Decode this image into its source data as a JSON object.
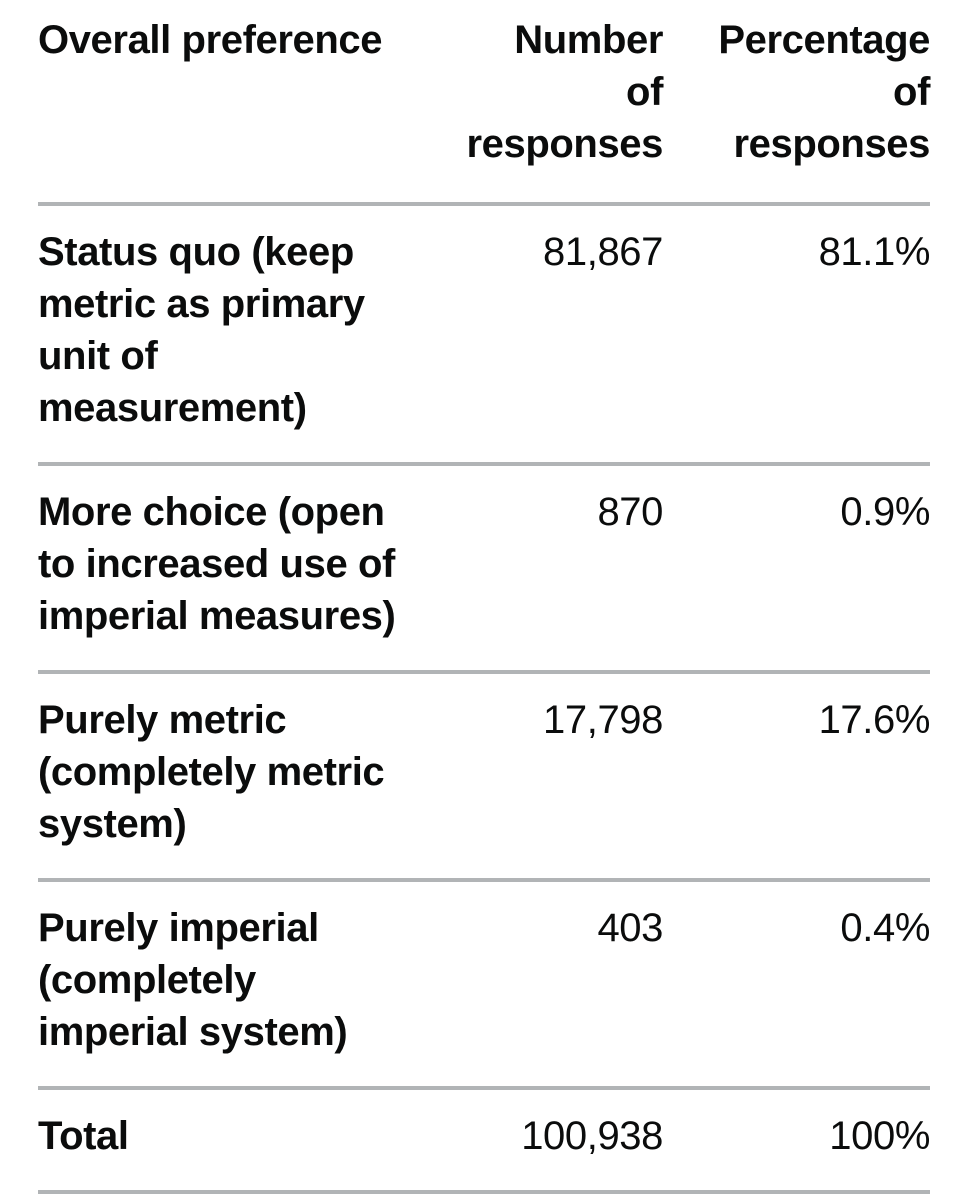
{
  "page": {
    "background": "#ffffff",
    "text_color": "#0b0c0c",
    "rule_color": "#b1b4b6"
  },
  "table": {
    "headers": [
      {
        "label": "Overall preference"
      },
      {
        "label": "Number\nof\nresponses"
      },
      {
        "label": "Percentage\nof\nresponses"
      }
    ],
    "rows": [
      {
        "label": "Status quo (keep\nmetric as primary\nunit of\nmeasurement)",
        "number": "81,867",
        "percentage": "81.1%"
      },
      {
        "label": "More choice (open\nto increased use of\nimperial measures)",
        "number": "870",
        "percentage": "0.9%"
      },
      {
        "label": "Purely metric\n(completely metric\nsystem)",
        "number": "17,798",
        "percentage": "17.6%"
      },
      {
        "label": "Purely imperial\n(completely\nimperial system)",
        "number": "403",
        "percentage": "0.4%"
      },
      {
        "label": "Total",
        "number": "100,938",
        "percentage": "100%"
      }
    ]
  },
  "chart_data": {
    "type": "table",
    "title": "Overall preference",
    "columns": [
      "Overall preference",
      "Number of responses",
      "Percentage of responses"
    ],
    "rows": [
      [
        "Status quo (keep metric as primary unit of measurement)",
        81867,
        "81.1%"
      ],
      [
        "More choice (open to increased use of imperial measures)",
        870,
        "0.9%"
      ],
      [
        "Purely metric (completely metric system)",
        17798,
        "17.6%"
      ],
      [
        "Purely imperial (completely imperial system)",
        403,
        "0.4%"
      ],
      [
        "Total",
        100938,
        "100%"
      ]
    ]
  }
}
